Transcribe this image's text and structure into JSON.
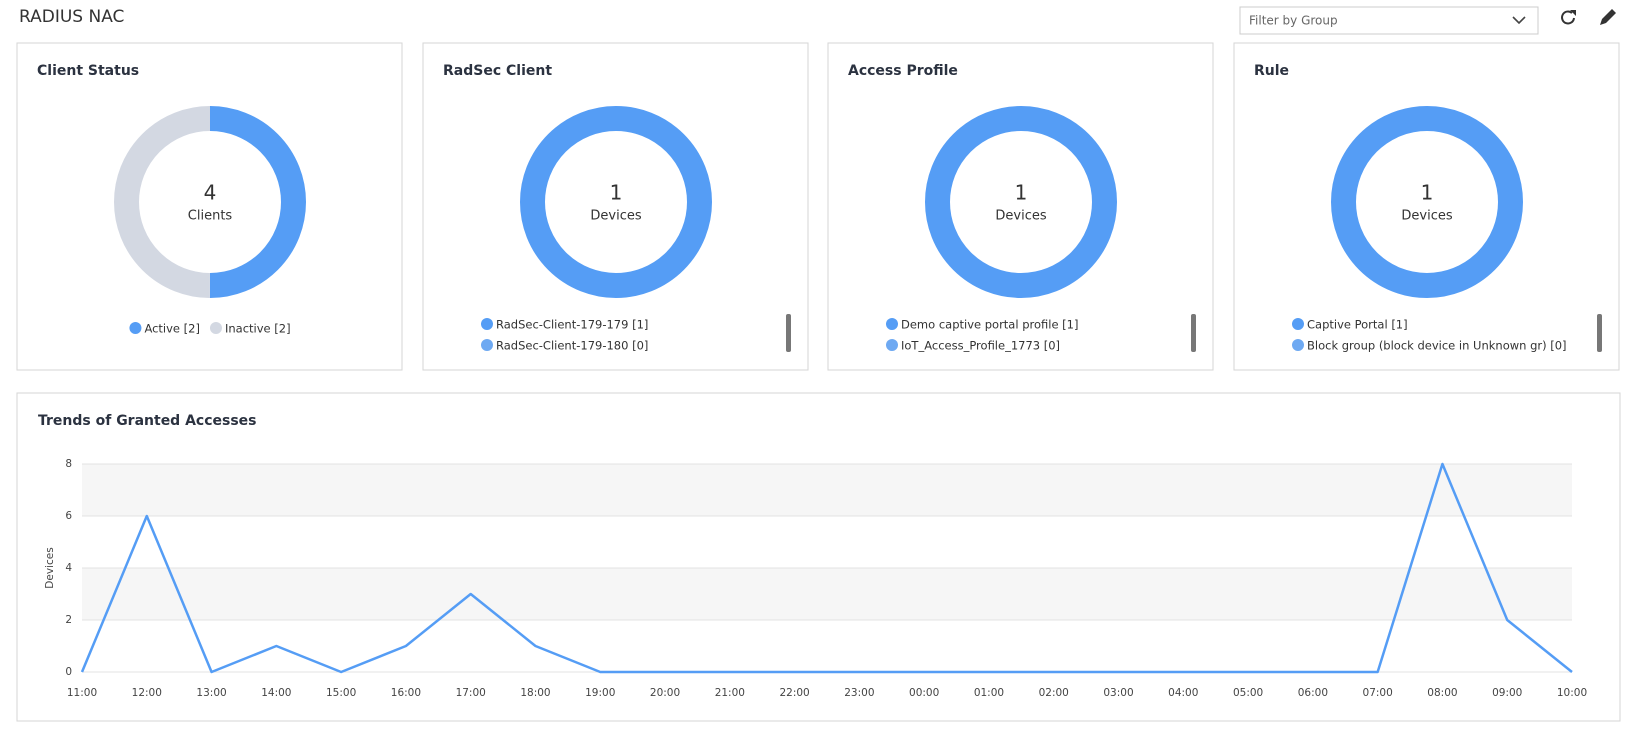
{
  "header": {
    "title": "RADIUS NAC",
    "filter_placeholder": "Filter by Group"
  },
  "chart_data": [
    {
      "type": "pie",
      "title": "Client Status",
      "center_value": 4,
      "center_label": "Clients",
      "categories": [
        "Active [2]",
        "Inactive [2]"
      ],
      "values": [
        2,
        2
      ],
      "colors": [
        "#559df5",
        "#d3d8e2"
      ],
      "legend": "row"
    },
    {
      "type": "pie",
      "title": "RadSec Client",
      "center_value": 1,
      "center_label": "Devices",
      "categories": [
        "RadSec-Client-179-179 [1]",
        "RadSec-Client-179-180 [0]"
      ],
      "values": [
        1,
        0
      ],
      "colors": [
        "#559df5",
        "#6ea9f2"
      ],
      "legend": "list"
    },
    {
      "type": "pie",
      "title": "Access Profile",
      "center_value": 1,
      "center_label": "Devices",
      "categories": [
        "Demo captive portal profile [1]",
        "IoT_Access_Profile_1773 [0]"
      ],
      "values": [
        1,
        0
      ],
      "colors": [
        "#559df5",
        "#6ea9f2"
      ],
      "legend": "list"
    },
    {
      "type": "pie",
      "title": "Rule",
      "center_value": 1,
      "center_label": "Devices",
      "categories": [
        "Captive Portal [1]",
        "Block group (block device in Unknown gr) [0]"
      ],
      "values": [
        1,
        0
      ],
      "colors": [
        "#559df5",
        "#6ea9f2"
      ],
      "legend": "list"
    },
    {
      "type": "line",
      "title": "Trends of Granted Accesses",
      "y_label": "Devices",
      "categories": [
        "11:00",
        "12:00",
        "13:00",
        "14:00",
        "15:00",
        "16:00",
        "17:00",
        "18:00",
        "19:00",
        "20:00",
        "21:00",
        "22:00",
        "23:00",
        "00:00",
        "01:00",
        "02:00",
        "03:00",
        "04:00",
        "05:00",
        "06:00",
        "07:00",
        "08:00",
        "09:00",
        "10:00"
      ],
      "values": [
        0,
        6,
        0,
        1,
        0,
        1,
        3,
        1,
        0,
        0,
        0,
        0,
        0,
        0,
        0,
        0,
        0,
        0,
        0,
        0,
        0,
        8,
        2,
        0
      ],
      "color": "#559df5",
      "ylim": [
        0,
        8
      ],
      "yticks": [
        0,
        2,
        4,
        6,
        8
      ],
      "grid": true
    }
  ]
}
